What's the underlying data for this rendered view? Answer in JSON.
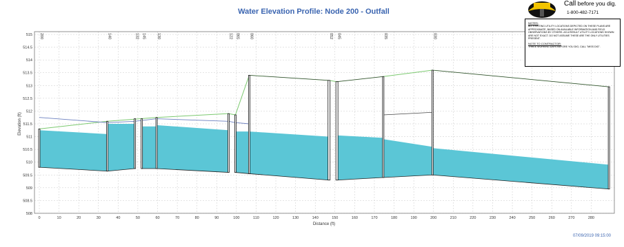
{
  "chart_data": {
    "type": "area",
    "title": "Water Elevation Profile: Node 200 - Outfall",
    "xlabel": "Distance (ft)",
    "ylabel": "Elevation (ft)",
    "xlim": [
      0,
      290
    ],
    "ylim": [
      508,
      515
    ],
    "xticks": [
      0,
      10,
      20,
      30,
      40,
      50,
      60,
      70,
      80,
      90,
      100,
      110,
      120,
      130,
      140,
      150,
      160,
      170,
      180,
      190,
      200,
      210,
      220,
      230,
      240,
      250,
      260,
      270,
      280
    ],
    "yticks": [
      508,
      508.5,
      509,
      509.5,
      510,
      510.5,
      511,
      511.5,
      512,
      512.5,
      513,
      513.5,
      514,
      514.5,
      515
    ],
    "ytick_labels": [
      "508",
      "508.5",
      "509",
      "509.5",
      "510",
      "510.5",
      "511",
      "511.5",
      "512",
      "512.5",
      "513",
      "513.5",
      "514",
      "514.5",
      "515"
    ],
    "grid": true,
    "nodes": [
      {
        "label": "200",
        "x": 0,
        "invert": 509.8,
        "rim": 511.3,
        "w": 2
      },
      {
        "label": "140",
        "x": 34.5,
        "invert": 509.65,
        "rim": 511.6,
        "w": 2
      },
      {
        "label": "132",
        "x": 48.5,
        "invert": 509.75,
        "rim": 511.7,
        "w": 2
      },
      {
        "label": "145",
        "x": 52,
        "invert": 509.75,
        "rim": 511.7,
        "w": 2
      },
      {
        "label": "130",
        "x": 59.5,
        "invert": 509.75,
        "rim": 511.75,
        "w": 2
      },
      {
        "label": "122",
        "x": 96,
        "invert": 509.6,
        "rim": 511.9,
        "w": 2
      },
      {
        "label": "065",
        "x": 99.5,
        "invert": 509.6,
        "rim": 511.85,
        "w": 2
      },
      {
        "label": "060",
        "x": 106.5,
        "invert": 509.55,
        "rim": 513.4,
        "w": 2
      },
      {
        "label": "052",
        "x": 147,
        "invert": 509.3,
        "rim": 513.2,
        "w": 3
      },
      {
        "label": "045",
        "x": 151,
        "invert": 509.3,
        "rim": 513.15,
        "w": 3
      },
      {
        "label": "035",
        "x": 174.5,
        "invert": 509.4,
        "rim": 513.35,
        "w": 2
      },
      {
        "label": "030",
        "x": 199.5,
        "invert": 509.5,
        "rim": 513.6,
        "w": 2
      },
      {
        "label": "",
        "x": 289,
        "invert": 508.95,
        "rim": 512.95,
        "w": 2
      }
    ],
    "pipes": [
      {
        "x1": 0,
        "x2": 34.5,
        "b1": 509.8,
        "b2": 509.65,
        "t1": 511.25,
        "t2": 511.1
      },
      {
        "x1": 34.5,
        "x2": 48.5,
        "b1": 509.65,
        "b2": 509.75,
        "t1": 511.5,
        "t2": 511.5
      },
      {
        "x1": 52,
        "x2": 59.5,
        "b1": 509.75,
        "b2": 509.75,
        "t1": 511.4,
        "t2": 511.4
      },
      {
        "x1": 59.5,
        "x2": 96,
        "b1": 509.75,
        "b2": 509.6,
        "t1": 511.45,
        "t2": 511.25
      },
      {
        "x1": 99.5,
        "x2": 106.5,
        "b1": 509.6,
        "b2": 509.55,
        "t1": 511.2,
        "t2": 511.2
      },
      {
        "x1": 106.5,
        "x2": 147,
        "b1": 509.55,
        "b2": 509.3,
        "t1": 511.2,
        "t2": 511.0
      },
      {
        "x1": 151,
        "x2": 174.5,
        "b1": 509.3,
        "b2": 509.4,
        "t1": 511.05,
        "t2": 510.95
      },
      {
        "x1": 174.5,
        "x2": 199.5,
        "b1": 509.4,
        "b2": 509.5,
        "t1": 510.9,
        "t2": 510.6
      },
      {
        "x1": 199.5,
        "x2": 289,
        "b1": 509.5,
        "b2": 508.95,
        "t1": 510.55,
        "t2": 509.9
      }
    ],
    "ground": [
      [
        0,
        511.3
      ],
      [
        34.5,
        511.6
      ],
      [
        59.5,
        511.75
      ],
      [
        96,
        511.9
      ],
      [
        99.5,
        511.85
      ],
      [
        106.5,
        513.4
      ],
      [
        147,
        513.2
      ],
      [
        151,
        513.15
      ],
      [
        174.5,
        513.35
      ],
      [
        199.5,
        513.6
      ],
      [
        289,
        512.95
      ]
    ],
    "hgl": [
      [
        0,
        511.75
      ],
      [
        34.5,
        511.55
      ],
      [
        48.5,
        511.6
      ],
      [
        59.5,
        511.7
      ],
      [
        96,
        511.6
      ],
      [
        99.5,
        511.55
      ],
      [
        106.5,
        511.5
      ]
    ],
    "hgl2": [
      [
        174.5,
        511.85
      ],
      [
        199.5,
        511.95
      ]
    ],
    "timestamp": "07/09/2019 09:15:00"
  },
  "logo": {
    "call_word": "Call",
    "call_rest": "before you dig.",
    "phone": "1-800-482-7171"
  },
  "notes": {
    "heading1": "NOTES:",
    "text1": "All existing utility locations depicted on these plans are approximate, based on available information and field observations by others. As a result utility locations shown are not exact. Do not assume these are the only utilities present.",
    "heading2": "NOTE TO CONTRACTOR:",
    "text2": "Three working days before you dig, call \"Miss Dig\"."
  },
  "colors": {
    "water": "#5bc6d6",
    "ground": "#7bc96f",
    "hgl": "#6b7fbf",
    "title": "#3a64b0",
    "grid": "#c8c8c8"
  }
}
